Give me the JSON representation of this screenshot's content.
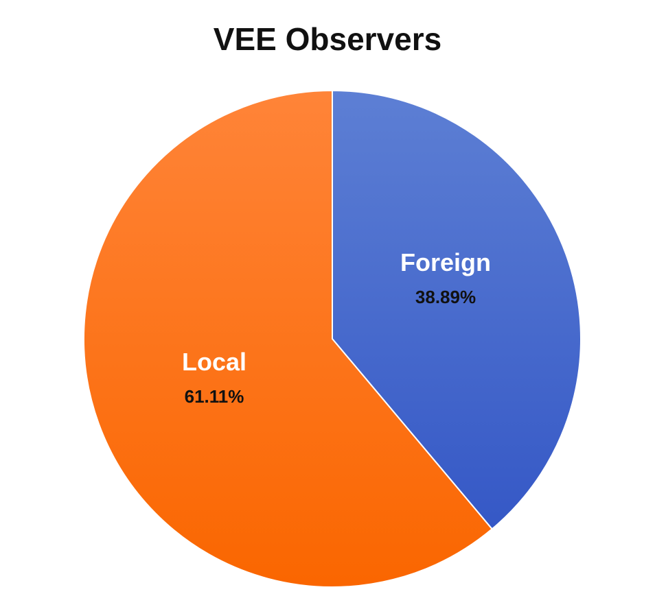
{
  "chart_data": {
    "type": "pie",
    "title": "VEE Observers",
    "slices": [
      {
        "label": "Foreign",
        "value": 38.89,
        "value_label": "38.89%",
        "color": "#4066cc"
      },
      {
        "label": "Local",
        "value": 61.11,
        "value_label": "61.11%",
        "color": "#ff6a00"
      }
    ],
    "start_angle_deg": 0,
    "direction": "clockwise",
    "legend": "none"
  }
}
